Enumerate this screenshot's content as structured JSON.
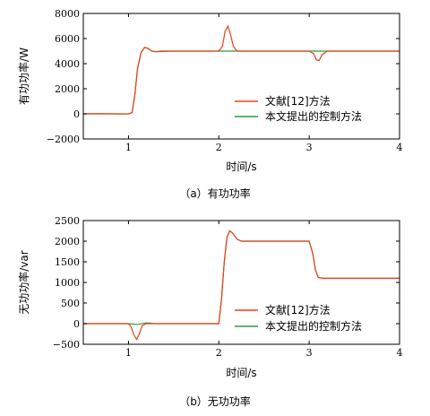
{
  "chart_data": [
    {
      "type": "line",
      "caption": "（a）有功功率",
      "xlabel": "时间/s",
      "ylabel": "有功功率/W",
      "xlim": [
        0.5,
        4
      ],
      "ylim": [
        -2000,
        8000
      ],
      "xticks": [
        "1",
        "2",
        "3",
        "4"
      ],
      "yticks": [
        "8000",
        "6000",
        "4000",
        "2000",
        "0",
        "−2000"
      ],
      "legend_position": "bottom-right",
      "series": [
        {
          "name": "文献[12]方法",
          "color": "#e8401c",
          "x": [
            0.5,
            0.7,
            0.9,
            1.0,
            1.04,
            1.07,
            1.1,
            1.14,
            1.18,
            1.22,
            1.26,
            1.3,
            1.35,
            1.4,
            1.5,
            2.0,
            2.04,
            2.07,
            2.1,
            2.13,
            2.16,
            2.2,
            2.25,
            2.5,
            3.0,
            3.05,
            3.08,
            3.11,
            3.14,
            3.2,
            3.5,
            4.0
          ],
          "y": [
            0,
            20,
            -10,
            0,
            100,
            1500,
            3600,
            4900,
            5300,
            5200,
            5000,
            4950,
            5000,
            5000,
            5000,
            5000,
            5400,
            6600,
            7000,
            6300,
            5400,
            5000,
            5000,
            5000,
            5000,
            4800,
            4300,
            4250,
            4700,
            5000,
            5000,
            5000
          ]
        },
        {
          "name": "本文提出的控制方法",
          "color": "#2a9a3a",
          "x": [
            0.5,
            1.0,
            1.04,
            1.07,
            1.1,
            1.14,
            1.18,
            1.22,
            1.26,
            1.3,
            1.5,
            2.0,
            3.0,
            4.0
          ],
          "y": [
            0,
            0,
            100,
            1500,
            3600,
            4900,
            5300,
            5200,
            5000,
            4950,
            5000,
            5000,
            5000,
            5000
          ]
        }
      ]
    },
    {
      "type": "line",
      "caption": "（b）无功功率",
      "xlabel": "时间/s",
      "ylabel": "无功功率/var",
      "xlim": [
        0.5,
        4
      ],
      "ylim": [
        -500,
        2500
      ],
      "xticks": [
        "1",
        "2",
        "3",
        "4"
      ],
      "yticks": [
        "2500",
        "2000",
        "1500",
        "1000",
        "500",
        "0",
        "−500"
      ],
      "legend_position": "bottom-right",
      "series": [
        {
          "name": "文献[12]方法",
          "color": "#e8401c",
          "x": [
            0.5,
            1.0,
            1.03,
            1.06,
            1.09,
            1.12,
            1.15,
            1.2,
            1.3,
            2.0,
            2.03,
            2.06,
            2.09,
            2.12,
            2.15,
            2.2,
            2.25,
            2.3,
            2.5,
            3.0,
            3.04,
            3.07,
            3.1,
            3.15,
            3.3,
            4.0
          ],
          "y": [
            0,
            0,
            -80,
            -270,
            -380,
            -250,
            -50,
            0,
            0,
            0,
            600,
            1500,
            2100,
            2250,
            2200,
            2050,
            2000,
            2000,
            2000,
            2000,
            1700,
            1300,
            1120,
            1100,
            1100,
            1100
          ]
        },
        {
          "name": "本文提出的控制方法",
          "color": "#2a9a3a",
          "x": [
            0.5,
            1.0,
            1.1,
            1.2,
            1.3,
            2.0,
            2.03,
            2.06,
            2.09,
            2.12,
            2.15,
            2.2,
            2.25,
            2.3,
            2.5,
            3.0,
            3.04,
            3.07,
            3.1,
            3.15,
            3.3,
            4.0
          ],
          "y": [
            0,
            0,
            -20,
            20,
            0,
            0,
            600,
            1500,
            2100,
            2250,
            2200,
            2050,
            2000,
            2000,
            2000,
            2000,
            1700,
            1300,
            1120,
            1100,
            1100,
            1100
          ]
        }
      ]
    }
  ]
}
